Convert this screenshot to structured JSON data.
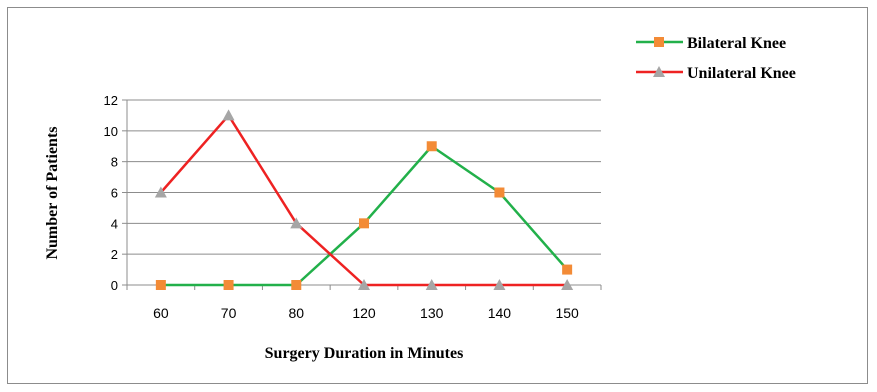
{
  "chart_data": {
    "type": "line",
    "categories": [
      "60",
      "70",
      "80",
      "120",
      "130",
      "140",
      "150"
    ],
    "series": [
      {
        "name": "Bilateral Knee",
        "values": [
          0,
          0,
          0,
          4,
          9,
          6,
          1
        ],
        "color": "#22b04a",
        "marker": "square",
        "marker_color": "#f38b36"
      },
      {
        "name": "Unilateral Knee",
        "values": [
          6,
          11,
          4,
          0,
          0,
          0,
          0
        ],
        "color": "#ee2222",
        "marker": "triangle",
        "marker_color": "#a6a6a6"
      }
    ],
    "xlabel": "Surgery Duration in Minutes",
    "ylabel": "Number of Patients",
    "ylim": [
      0,
      12
    ],
    "yticks": [
      0,
      2,
      4,
      6,
      8,
      10,
      12
    ],
    "grid": "horizontal",
    "legend_position": "top-right"
  }
}
